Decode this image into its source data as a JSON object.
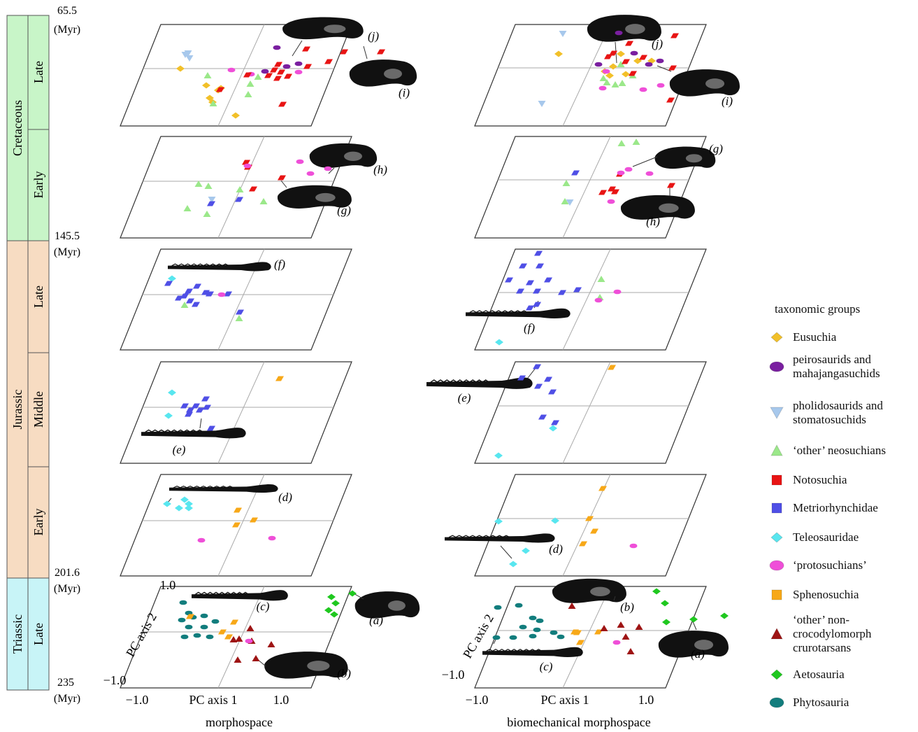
{
  "timescale": {
    "periods": [
      {
        "name": "Cretaceous",
        "color": "#c8f5c8",
        "epochs": [
          "Late",
          "Early"
        ]
      },
      {
        "name": "Jurassic",
        "color": "#f7dcc2",
        "epochs": [
          "Late",
          "Middle",
          "Early"
        ]
      },
      {
        "name": "Triassic",
        "color": "#c8f4f7",
        "epochs": [
          "Late"
        ]
      }
    ],
    "ages": [
      "65.5",
      "145.5",
      "201.6",
      "235"
    ],
    "age_unit": "(Myr)"
  },
  "axes": {
    "x_label": "PC axis 1",
    "y_label": "PC axis 2",
    "tick_min": "−1.0",
    "tick_max": "1.0"
  },
  "panel_titles": [
    "morphospace",
    "biomechanical morphospace"
  ],
  "letters": {
    "a": "(a)",
    "b": "(b)",
    "c": "(c)",
    "d": "(d)",
    "e": "(e)",
    "f": "(f)",
    "g": "(g)",
    "h": "(h)",
    "i": "(i)",
    "j": "(j)"
  },
  "legend": {
    "title": "taxonomic groups",
    "items": [
      {
        "label": [
          "Eusuchia"
        ],
        "shape": "diamond",
        "color": "#f2c029"
      },
      {
        "label": [
          "peirosaurids and",
          "mahajangasuchids"
        ],
        "shape": "ellipse",
        "color": "#7a1fa0"
      },
      {
        "label": [
          "pholidosaurids and",
          "stomatosuchids"
        ],
        "shape": "triangle-down",
        "color": "#a7c8ec"
      },
      {
        "label": [
          "‘other’ neosuchians"
        ],
        "shape": "triangle",
        "color": "#9be88a"
      },
      {
        "label": [
          "Notosuchia"
        ],
        "shape": "square",
        "color": "#e81414"
      },
      {
        "label": [
          "Metriorhynchidae"
        ],
        "shape": "square",
        "color": "#4f4fe6"
      },
      {
        "label": [
          "Teleosauridae"
        ],
        "shape": "diamond",
        "color": "#58e6ef"
      },
      {
        "label": [
          "‘protosuchians’"
        ],
        "shape": "ellipse",
        "color": "#ef4fd8"
      },
      {
        "label": [
          "Sphenosuchia"
        ],
        "shape": "square",
        "color": "#f7a818"
      },
      {
        "label": [
          "‘other’ non-",
          "crocodylomorph",
          "crurotarsans"
        ],
        "shape": "triangle",
        "color": "#9e1414"
      },
      {
        "label": [
          "Aetosauria"
        ],
        "shape": "diamond",
        "color": "#1fc81f"
      },
      {
        "label": [
          "Phytosauria"
        ],
        "shape": "ellipse",
        "color": "#127d7d"
      }
    ]
  }
}
